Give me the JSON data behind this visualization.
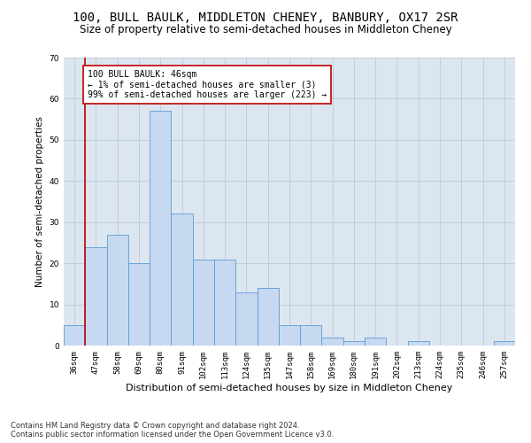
{
  "title": "100, BULL BAULK, MIDDLETON CHENEY, BANBURY, OX17 2SR",
  "subtitle": "Size of property relative to semi-detached houses in Middleton Cheney",
  "xlabel": "Distribution of semi-detached houses by size in Middleton Cheney",
  "ylabel": "Number of semi-detached properties",
  "categories": [
    "36sqm",
    "47sqm",
    "58sqm",
    "69sqm",
    "80sqm",
    "91sqm",
    "102sqm",
    "113sqm",
    "124sqm",
    "135sqm",
    "147sqm",
    "158sqm",
    "169sqm",
    "180sqm",
    "191sqm",
    "202sqm",
    "213sqm",
    "224sqm",
    "235sqm",
    "246sqm",
    "257sqm"
  ],
  "values": [
    5,
    24,
    27,
    20,
    57,
    32,
    21,
    21,
    13,
    14,
    5,
    5,
    2,
    1,
    2,
    0,
    1,
    0,
    0,
    0,
    1
  ],
  "bar_color": "#c6d9f1",
  "bar_edge_color": "#5b9bd5",
  "highlight_color": "#c00000",
  "annotation_text": "100 BULL BAULK: 46sqm\n← 1% of semi-detached houses are smaller (3)\n99% of semi-detached houses are larger (223) →",
  "annotation_box_color": "#ffffff",
  "ylim": [
    0,
    70
  ],
  "yticks": [
    0,
    10,
    20,
    30,
    40,
    50,
    60,
    70
  ],
  "footer": "Contains HM Land Registry data © Crown copyright and database right 2024.\nContains public sector information licensed under the Open Government Licence v3.0.",
  "plot_bg_color": "#dce6f1",
  "title_fontsize": 10,
  "subtitle_fontsize": 8.5,
  "xlabel_fontsize": 8,
  "ylabel_fontsize": 7.5,
  "tick_fontsize": 6.5,
  "footer_fontsize": 6,
  "annotation_fontsize": 7,
  "red_line_x": 0.5
}
